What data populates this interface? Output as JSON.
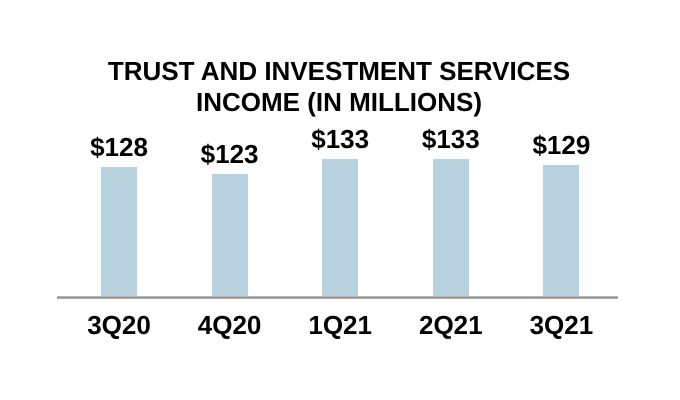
{
  "page": {
    "background_color": "#ffffff",
    "text_color": "#000000"
  },
  "chart_data": {
    "type": "bar",
    "title_line1": "TRUST AND INVESTMENT SERVICES",
    "title_line2": "INCOME (IN MILLIONS)",
    "categories": [
      "3Q20",
      "4Q20",
      "1Q21",
      "2Q21",
      "3Q21"
    ],
    "values": [
      128,
      123,
      133,
      133,
      129
    ],
    "value_labels": [
      "$128",
      "$123",
      "$133",
      "$133",
      "$129"
    ],
    "ylim": [
      42,
      140
    ],
    "bar_color": "#b8d1df",
    "axis_line_color": "#9c9c9c",
    "grid": false,
    "legend": false,
    "xlabel": "",
    "ylabel": ""
  }
}
